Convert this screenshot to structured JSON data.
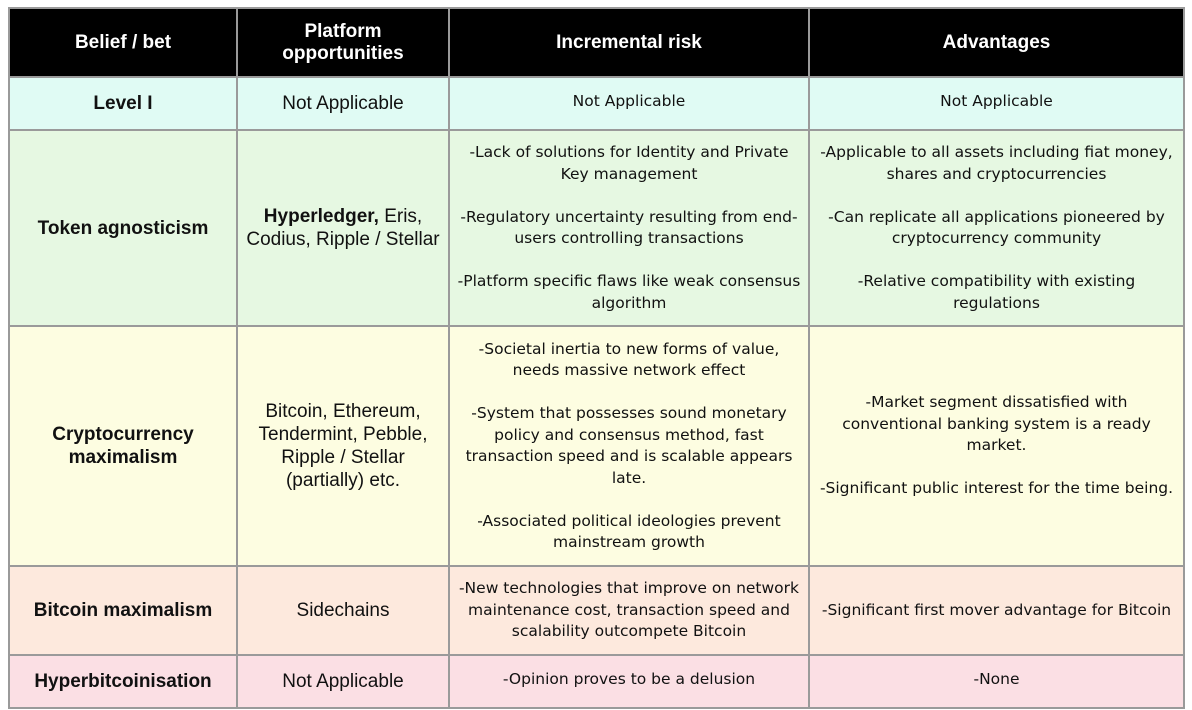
{
  "table": {
    "header": [
      "Belief / bet",
      "Platform opportunities",
      "Incremental risk",
      "Advantages"
    ],
    "rows": [
      {
        "label": "Level I",
        "platforms": [
          {
            "text": "Not Applicable",
            "bold": false
          }
        ],
        "risks": [
          "Not Applicable"
        ],
        "advantages": [
          "Not Applicable"
        ]
      },
      {
        "label": "Token agnosticism",
        "platforms": [
          {
            "text": "Hyperledger,",
            "bold": true
          },
          {
            "text": "Eris, Codius, Ripple / Stellar",
            "bold": false
          }
        ],
        "risks": [
          "-Lack of solutions for Identity and Private Key management",
          "-Regulatory uncertainty resulting from end-users controlling transactions",
          "-Platform specific flaws like weak consensus algorithm"
        ],
        "advantages": [
          "-Applicable to all assets including fiat money, shares and cryptocurrencies",
          "-Can replicate all applications pioneered by cryptocurrency community",
          "-Relative compatibility with existing regulations"
        ]
      },
      {
        "label": "Cryptocurrency maximalism",
        "platforms": [
          {
            "text": "Bitcoin, Ethereum, Tendermint, Pebble, Ripple / Stellar (partially) etc.",
            "bold": false
          }
        ],
        "risks": [
          "-Societal inertia to new forms of value, needs massive network effect",
          "-System that possesses sound monetary policy and consensus method, fast transaction speed and is scalable appears late.",
          "-Associated political ideologies prevent mainstream growth"
        ],
        "advantages": [
          "-Market segment dissatisfied with conventional banking system is a ready market.",
          "-Significant public interest for the time being."
        ]
      },
      {
        "label": "Bitcoin maximalism",
        "platforms": [
          {
            "text": "Sidechains",
            "bold": false
          }
        ],
        "risks": [
          "-New technologies that improve on network maintenance cost, transaction speed and scalability outcompete Bitcoin"
        ],
        "advantages": [
          "-Significant first mover advantage for Bitcoin"
        ]
      },
      {
        "label": "Hyperbitcoinisation",
        "platforms": [
          {
            "text": "Not Applicable",
            "bold": false
          }
        ],
        "risks": [
          "-Opinion proves to be a delusion"
        ],
        "advantages": [
          "-None"
        ]
      }
    ]
  }
}
